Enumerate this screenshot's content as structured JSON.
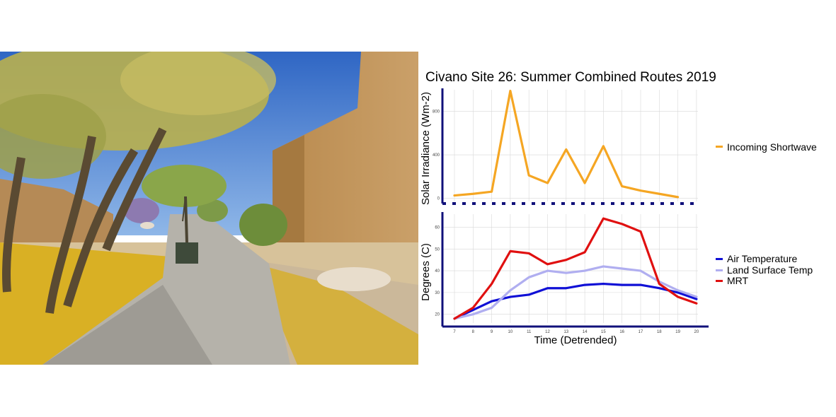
{
  "colors": {
    "shortwave": "#f5a623",
    "air_temp": "#1010d6",
    "lst": "#b0aef0",
    "mrt": "#e01010",
    "axis": "#10107a",
    "grid": "#d8d8d8"
  },
  "chart_data": [
    {
      "type": "line",
      "title": "Civano Site 26: Summer Combined Routes 2019",
      "ylabel": "Solar Irradiance (Wm-2)",
      "xlabel": "",
      "x": [
        7,
        8,
        9,
        10,
        11,
        12,
        13,
        14,
        15,
        16,
        17,
        18,
        19,
        20
      ],
      "ylim": [
        -30,
        1000
      ],
      "yticks": [
        0,
        400,
        800
      ],
      "ytick_labels": [
        "0",
        "400",
        "800"
      ],
      "grid": true,
      "legend_position": "right",
      "series": [
        {
          "name": "Incoming Shortwave",
          "color_key": "shortwave",
          "values": [
            25,
            40,
            60,
            990,
            210,
            140,
            450,
            140,
            480,
            110,
            70,
            40,
            10,
            null
          ]
        }
      ]
    },
    {
      "type": "line",
      "title": "",
      "ylabel": "Degrees (C)",
      "xlabel": "Time (Detrended)",
      "x": [
        7,
        8,
        9,
        10,
        11,
        12,
        13,
        14,
        15,
        16,
        17,
        18,
        19,
        20
      ],
      "xtick_labels": [
        "7",
        "8",
        "9",
        "10",
        "11",
        "12",
        "13",
        "14",
        "15",
        "16",
        "17",
        "18",
        "19",
        "20"
      ],
      "ylim": [
        16,
        66
      ],
      "yticks": [
        20,
        30,
        40,
        50,
        60
      ],
      "ytick_labels": [
        "20",
        "30",
        "40",
        "50",
        "60"
      ],
      "grid": true,
      "legend_position": "right",
      "series": [
        {
          "name": "Air Temperature",
          "color_key": "air_temp",
          "values": [
            18,
            22,
            26,
            28,
            29,
            32,
            32,
            33.5,
            34,
            33.5,
            33.5,
            32,
            30,
            27
          ]
        },
        {
          "name": "Land Surface Temp",
          "color_key": "lst",
          "values": [
            18,
            20,
            23,
            31,
            37,
            40,
            39,
            40,
            42,
            41,
            40,
            35,
            31,
            28
          ]
        },
        {
          "name": "MRT",
          "color_key": "mrt",
          "values": [
            18,
            23,
            34,
            49,
            48,
            43,
            45,
            48.5,
            64,
            61.5,
            58,
            34,
            28,
            25
          ]
        }
      ]
    }
  ]
}
